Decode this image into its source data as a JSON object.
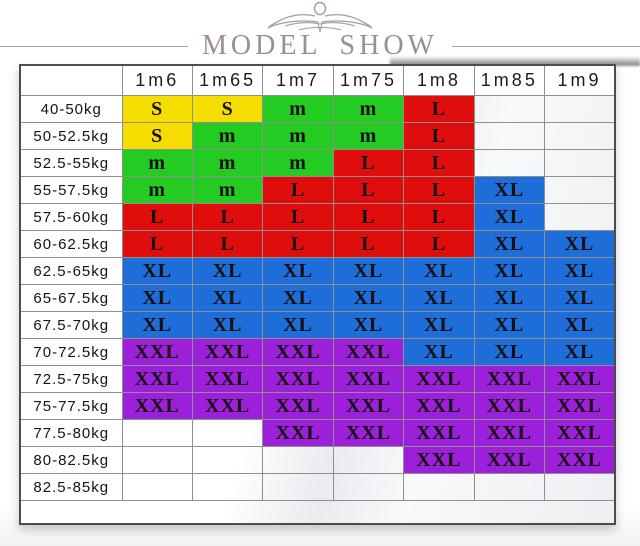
{
  "header": {
    "title": "MODEL SHOW",
    "ornament_icon": "crown-flourish"
  },
  "chart_data": {
    "type": "table",
    "title": "MODEL SHOW",
    "columns": [
      "",
      "1m6",
      "1m65",
      "1m7",
      "1m75",
      "1m8",
      "1m85",
      "1m9"
    ],
    "rows": [
      {
        "weight": "40-50kg",
        "sizes": [
          "S",
          "S",
          "m",
          "m",
          "L",
          "",
          ""
        ]
      },
      {
        "weight": "50-52.5kg",
        "sizes": [
          "S",
          "m",
          "m",
          "m",
          "L",
          "",
          ""
        ]
      },
      {
        "weight": "52.5-55kg",
        "sizes": [
          "m",
          "m",
          "m",
          "L",
          "L",
          "",
          ""
        ]
      },
      {
        "weight": "55-57.5kg",
        "sizes": [
          "m",
          "m",
          "L",
          "L",
          "L",
          "XL",
          ""
        ]
      },
      {
        "weight": "57.5-60kg",
        "sizes": [
          "L",
          "L",
          "L",
          "L",
          "L",
          "XL",
          ""
        ]
      },
      {
        "weight": "60-62.5kg",
        "sizes": [
          "L",
          "L",
          "L",
          "L",
          "L",
          "XL",
          "XL"
        ]
      },
      {
        "weight": "62.5-65kg",
        "sizes": [
          "XL",
          "XL",
          "XL",
          "XL",
          "XL",
          "XL",
          "XL"
        ]
      },
      {
        "weight": "65-67.5kg",
        "sizes": [
          "XL",
          "XL",
          "XL",
          "XL",
          "XL",
          "XL",
          "XL"
        ]
      },
      {
        "weight": "67.5-70kg",
        "sizes": [
          "XL",
          "XL",
          "XL",
          "XL",
          "XL",
          "XL",
          "XL"
        ]
      },
      {
        "weight": "70-72.5kg",
        "sizes": [
          "XXL",
          "XXL",
          "XXL",
          "XXL",
          "XL",
          "XL",
          "XL"
        ]
      },
      {
        "weight": "72.5-75kg",
        "sizes": [
          "XXL",
          "XXL",
          "XXL",
          "XXL",
          "XXL",
          "XXL",
          "XXL"
        ]
      },
      {
        "weight": "75-77.5kg",
        "sizes": [
          "XXL",
          "XXL",
          "XXL",
          "XXL",
          "XXL",
          "XXL",
          "XXL"
        ]
      },
      {
        "weight": "77.5-80kg",
        "sizes": [
          "",
          "",
          "XXL",
          "XXL",
          "XXL",
          "XXL",
          "XXL"
        ]
      },
      {
        "weight": "80-82.5kg",
        "sizes": [
          "",
          "",
          "",
          "",
          "XXL",
          "XXL",
          "XXL"
        ]
      },
      {
        "weight": "82.5-85kg",
        "sizes": [
          "",
          "",
          "",
          "",
          "",
          "",
          ""
        ]
      }
    ],
    "size_colors": {
      "S": "#f5dd00",
      "m": "#23cb23",
      "L": "#e00d0d",
      "XL": "#1d6ed8",
      "XXL": "#9c20d9"
    },
    "legend_position": "none",
    "grid": true
  }
}
